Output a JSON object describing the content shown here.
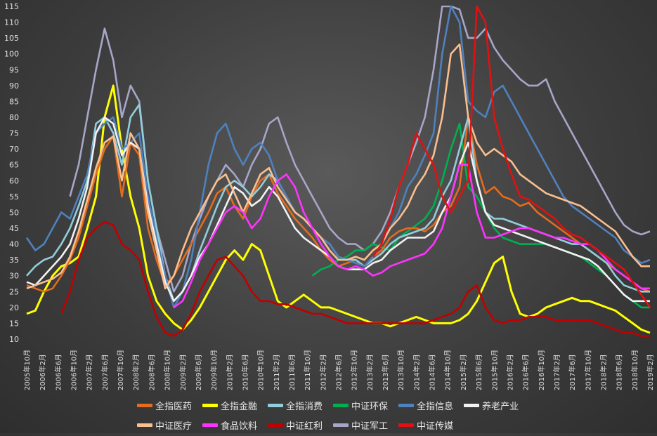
{
  "chart_data": {
    "type": "line",
    "title": "",
    "xlabel": "",
    "ylabel": "",
    "ylim": [
      10,
      115
    ],
    "yticks": [
      10,
      15,
      20,
      25,
      30,
      35,
      40,
      45,
      50,
      55,
      60,
      65,
      70,
      75,
      80,
      85,
      90,
      95,
      100,
      105,
      110,
      115
    ],
    "grid": false,
    "legend_position": "bottom",
    "x_tick_labels": [
      "2005年10月",
      "2006年2月",
      "2006年6月",
      "2006年10月",
      "2007年2月",
      "2007年6月",
      "2007年10月",
      "2008年2月",
      "2008年6月",
      "2008年10月",
      "2009年2月",
      "2009年6月",
      "2009年10月",
      "2010年2月",
      "2010年6月",
      "2010年10月",
      "2011年2月",
      "2011年6月",
      "2011年10月",
      "2012年2月",
      "2012年6月",
      "2012年10月",
      "2013年2月",
      "2013年6月",
      "2013年10月",
      "2014年2月",
      "2014年6月",
      "2014年10月",
      "2015年2月",
      "2015年6月",
      "2015年10月",
      "2016年2月",
      "2016年6月",
      "2016年10月",
      "2017年2月",
      "2017年6月",
      "2017年10月",
      "2018年2月",
      "2018年6月",
      "2018年10月",
      "2019年2月"
    ],
    "series": [
      {
        "name": "全指医药",
        "color": "#e36c1e",
        "values": [
          27,
          26,
          25,
          26,
          30,
          35,
          42,
          52,
          62,
          70,
          74,
          55,
          72,
          68,
          45,
          35,
          27,
          30,
          35,
          40,
          45,
          50,
          56,
          58,
          52,
          48,
          55,
          60,
          62,
          56,
          52,
          48,
          45,
          42,
          38,
          35,
          33,
          34,
          35,
          33,
          36,
          38,
          42,
          44,
          45,
          45,
          44,
          46,
          50,
          52,
          58,
          80,
          65,
          56,
          58,
          55,
          54,
          52,
          53,
          50,
          48,
          46,
          44,
          42,
          40,
          38,
          36,
          34,
          32,
          30,
          28,
          26,
          25
        ]
      },
      {
        "name": "全指金融",
        "color": "#ffff00",
        "values": [
          18,
          19,
          25,
          30,
          33,
          34,
          36,
          45,
          55,
          80,
          90,
          70,
          55,
          45,
          30,
          22,
          18,
          15,
          13,
          16,
          20,
          25,
          30,
          35,
          38,
          35,
          40,
          38,
          30,
          22,
          20,
          22,
          24,
          22,
          20,
          20,
          19,
          18,
          17,
          16,
          15,
          15,
          14,
          15,
          16,
          17,
          16,
          15,
          15,
          15,
          16,
          18,
          22,
          28,
          34,
          36,
          25,
          18,
          17,
          18,
          20,
          21,
          22,
          23,
          22,
          22,
          21,
          20,
          19,
          17,
          15,
          13,
          12
        ]
      },
      {
        "name": "全指消费",
        "color": "#92cddc",
        "values": [
          30,
          33,
          35,
          36,
          40,
          45,
          52,
          60,
          78,
          80,
          75,
          65,
          80,
          84,
          60,
          45,
          30,
          22,
          25,
          30,
          38,
          45,
          52,
          58,
          60,
          58,
          55,
          58,
          62,
          60,
          55,
          50,
          48,
          45,
          42,
          40,
          36,
          35,
          35,
          33,
          35,
          37,
          40,
          42,
          43,
          44,
          45,
          48,
          55,
          60,
          70,
          80,
          60,
          50,
          48,
          48,
          47,
          46,
          45,
          44,
          43,
          42,
          41,
          40,
          40,
          38,
          36,
          34,
          30,
          27,
          26,
          25,
          25
        ]
      },
      {
        "name": "中证环保",
        "color": "#00b050",
        "values": [
          null,
          null,
          null,
          null,
          null,
          null,
          null,
          null,
          null,
          null,
          null,
          null,
          null,
          null,
          null,
          null,
          null,
          null,
          null,
          null,
          null,
          null,
          null,
          null,
          null,
          null,
          null,
          null,
          null,
          null,
          null,
          null,
          null,
          30,
          32,
          33,
          35,
          36,
          38,
          38,
          40,
          39,
          38,
          42,
          44,
          46,
          48,
          52,
          60,
          70,
          78,
          58,
          55,
          50,
          45,
          42,
          41,
          40,
          40,
          40,
          40,
          39,
          38,
          37,
          36,
          34,
          32,
          30,
          27,
          24,
          22,
          20,
          20
        ]
      },
      {
        "name": "全指信息",
        "color": "#4f81bd",
        "values": [
          42,
          38,
          40,
          45,
          50,
          48,
          55,
          62,
          75,
          78,
          80,
          70,
          72,
          75,
          55,
          42,
          30,
          20,
          25,
          35,
          50,
          65,
          75,
          78,
          70,
          65,
          70,
          72,
          68,
          60,
          55,
          50,
          48,
          45,
          42,
          40,
          36,
          35,
          34,
          33,
          36,
          40,
          45,
          50,
          58,
          62,
          68,
          75,
          100,
          115,
          110,
          85,
          82,
          80,
          88,
          90,
          85,
          80,
          75,
          70,
          65,
          60,
          55,
          52,
          50,
          48,
          46,
          44,
          42,
          38,
          36,
          34,
          35
        ]
      },
      {
        "name": "养老产业",
        "color": "#f2f2f2",
        "values": [
          28,
          27,
          30,
          33,
          36,
          40,
          48,
          58,
          75,
          80,
          78,
          68,
          72,
          70,
          52,
          40,
          28,
          22,
          25,
          30,
          36,
          40,
          46,
          52,
          58,
          56,
          52,
          54,
          58,
          55,
          50,
          45,
          42,
          40,
          38,
          36,
          33,
          32,
          32,
          32,
          34,
          35,
          38,
          40,
          42,
          42,
          42,
          44,
          50,
          55,
          65,
          72,
          60,
          50,
          46,
          45,
          44,
          43,
          42,
          41,
          40,
          39,
          38,
          37,
          36,
          35,
          33,
          30,
          27,
          24,
          22,
          22,
          22
        ]
      },
      {
        "name": "中证医疗",
        "color": "#fabf8f",
        "values": [
          26,
          27,
          28,
          29,
          31,
          36,
          44,
          54,
          64,
          72,
          74,
          60,
          75,
          70,
          50,
          38,
          26,
          30,
          38,
          45,
          50,
          55,
          60,
          62,
          56,
          50,
          56,
          62,
          64,
          58,
          54,
          50,
          48,
          45,
          42,
          38,
          35,
          35,
          36,
          35,
          38,
          40,
          45,
          48,
          52,
          58,
          62,
          68,
          80,
          100,
          103,
          80,
          72,
          68,
          70,
          68,
          66,
          62,
          60,
          58,
          56,
          55,
          54,
          53,
          52,
          50,
          48,
          46,
          44,
          40,
          36,
          33,
          33
        ]
      },
      {
        "name": "食品饮料",
        "color": "#ff33ff",
        "values": [
          null,
          null,
          null,
          null,
          null,
          null,
          null,
          null,
          null,
          null,
          null,
          null,
          null,
          null,
          null,
          null,
          null,
          20,
          22,
          28,
          35,
          40,
          45,
          50,
          52,
          50,
          45,
          48,
          55,
          60,
          62,
          58,
          50,
          45,
          40,
          36,
          33,
          32,
          33,
          32,
          30,
          31,
          33,
          34,
          35,
          36,
          37,
          40,
          45,
          55,
          65,
          65,
          50,
          42,
          42,
          43,
          44,
          45,
          45,
          44,
          43,
          42,
          42,
          41,
          40,
          40,
          38,
          35,
          32,
          30,
          28,
          26,
          26
        ]
      },
      {
        "name": "中证红利",
        "color": "#c00000",
        "values": [
          null,
          null,
          null,
          null,
          18,
          25,
          35,
          42,
          45,
          47,
          46,
          40,
          38,
          35,
          25,
          17,
          12,
          11,
          13,
          18,
          25,
          30,
          35,
          36,
          33,
          30,
          25,
          22,
          22,
          21,
          21,
          20,
          19,
          18,
          18,
          17,
          16,
          15,
          15,
          15,
          15,
          15,
          15,
          15,
          15,
          15,
          15,
          16,
          17,
          18,
          20,
          25,
          27,
          20,
          16,
          15,
          16,
          16,
          17,
          17,
          17,
          16,
          16,
          16,
          16,
          16,
          15,
          14,
          13,
          12,
          12,
          11,
          11
        ]
      },
      {
        "name": "中证军工",
        "color": "#a6a6c8",
        "values": [
          null,
          null,
          null,
          null,
          null,
          55,
          65,
          80,
          95,
          108,
          98,
          80,
          90,
          85,
          60,
          45,
          35,
          25,
          30,
          40,
          48,
          55,
          60,
          65,
          62,
          58,
          65,
          70,
          78,
          80,
          72,
          65,
          60,
          55,
          50,
          45,
          42,
          40,
          40,
          38,
          40,
          44,
          50,
          58,
          65,
          72,
          80,
          95,
          115,
          115,
          114,
          105,
          105,
          108,
          102,
          98,
          95,
          92,
          90,
          90,
          92,
          85,
          80,
          75,
          70,
          65,
          60,
          55,
          50,
          46,
          44,
          43,
          44
        ]
      },
      {
        "name": "中证传媒",
        "color": "#e21010",
        "values": [
          null,
          null,
          null,
          null,
          null,
          null,
          null,
          null,
          null,
          null,
          null,
          null,
          null,
          null,
          null,
          null,
          null,
          null,
          null,
          null,
          null,
          null,
          null,
          null,
          null,
          null,
          null,
          null,
          null,
          null,
          null,
          null,
          null,
          null,
          null,
          null,
          null,
          null,
          null,
          null,
          36,
          40,
          48,
          58,
          65,
          75,
          70,
          65,
          55,
          50,
          55,
          60,
          115,
          110,
          80,
          70,
          62,
          55,
          54,
          52,
          50,
          48,
          45,
          43,
          42,
          40,
          38,
          36,
          34,
          32,
          28,
          24,
          20
        ]
      }
    ]
  },
  "legend": {
    "row1": [
      {
        "label": "全指医药",
        "color": "#e36c1e"
      },
      {
        "label": "全指金融",
        "color": "#ffff00"
      },
      {
        "label": "全指消费",
        "color": "#92cddc"
      },
      {
        "label": "中证环保",
        "color": "#00b050"
      },
      {
        "label": "全指信息",
        "color": "#4f81bd"
      },
      {
        "label": "养老产业",
        "color": "#f2f2f2"
      }
    ],
    "row2": [
      {
        "label": "中证医疗",
        "color": "#fabf8f"
      },
      {
        "label": "食品饮料",
        "color": "#ff33ff"
      },
      {
        "label": "中证红利",
        "color": "#c00000"
      },
      {
        "label": "中证军工",
        "color": "#a6a6c8"
      },
      {
        "label": "中证传媒",
        "color": "#e21010"
      }
    ]
  }
}
